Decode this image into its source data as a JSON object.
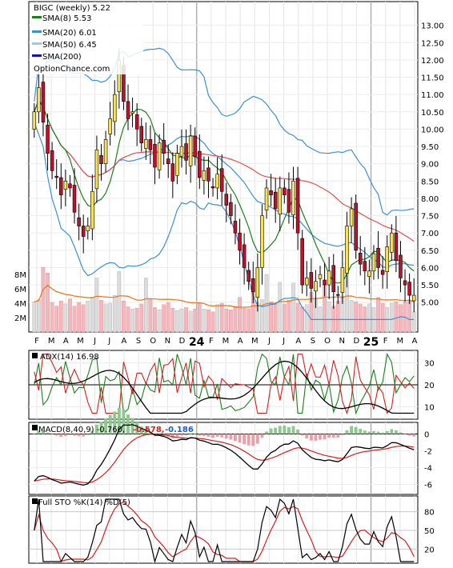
{
  "legend": {
    "title": "BIGC (weekly) 5.22",
    "sma8": "SMA(8) 5.53",
    "sma20": "SMA(20) 6.01",
    "sma50": "SMA(50) 6.45",
    "sma200": "SMA(200)",
    "watermark": "OptionChance.com",
    "adx": "ADX(14) 16.98",
    "macd": "MACD(8,40,9) -0.760,",
    "macd_value": "-0.578,",
    "macd_signal_value": "-0.186",
    "sto": "Full STO %K(14) %D(5)"
  },
  "colors": {
    "up_candle": "#f5e15a",
    "down_candle": "#c0102a",
    "sma8": "#1a7f1a",
    "sma20": "#3b8fd6",
    "sma50": "#e05050",
    "bb_upper": "#f0d020",
    "volume_up": "#dcdcdc",
    "volume_down": "#f2b8c0",
    "volume_ma": "#e87a20"
  },
  "chart_data": [
    {
      "type": "candlestick",
      "panel": "price",
      "x_tick_labels": [
        "F",
        "M",
        "A",
        "M",
        "J",
        "J",
        "A",
        "S",
        "O",
        "N",
        "D",
        "24",
        "F",
        "M",
        "A",
        "M",
        "J",
        "J",
        "A",
        "S",
        "O",
        "N",
        "D",
        "25",
        "F",
        "M",
        "A"
      ],
      "ylim": [
        4.3,
        13.5
      ],
      "y_tick_labels": [
        "13.00",
        "12.50",
        "12.00",
        "11.50",
        "11.00",
        "10.50",
        "10.00",
        "9.50",
        "9.00",
        "8.50",
        "8.00",
        "7.50",
        "7.00",
        "6.50",
        "6.00",
        "5.50",
        "5.00"
      ],
      "y_tick_values": [
        13,
        12.5,
        12,
        11.5,
        11,
        10.5,
        10,
        9.5,
        9,
        8.5,
        8,
        7.5,
        7,
        6.5,
        6,
        5.5,
        5
      ],
      "closes": [
        10.5,
        11.2,
        10.2,
        9.3,
        8.8,
        8.6,
        8.1,
        8.5,
        8.3,
        7.6,
        7.2,
        6.9,
        7.2,
        8.2,
        9.4,
        9.0,
        9.7,
        10.3,
        11.0,
        12.0,
        10.8,
        10.3,
        10.5,
        10.0,
        9.6,
        9.7,
        9.4,
        8.9,
        9.6,
        9.3,
        9.0,
        8.5,
        9.3,
        9.5,
        9.1,
        9.8,
        9.2,
        8.6,
        8.8,
        8.5,
        8.3,
        8.7,
        8.2,
        7.8,
        7.5,
        7.0,
        6.5,
        6.0,
        5.6,
        5.3,
        6.0,
        7.5,
        8.3,
        8.1,
        7.7,
        8.3,
        8.1,
        7.6,
        8.5,
        7.0,
        5.5,
        5.7,
        5.4,
        5.6,
        5.8,
        5.5,
        5.9,
        5.3,
        5.2,
        6.0,
        7.2,
        7.7,
        6.5,
        6.1,
        5.9,
        5.9,
        6.4,
        6.0,
        5.8,
        6.6,
        7.0,
        6.2,
        5.7,
        5.5,
        5.2,
        5.2
      ],
      "volume_ylim": [
        0,
        10000000
      ],
      "volume_tick_labels": [
        "8M",
        "6M",
        "4M",
        "2M"
      ],
      "volume_tick_values": [
        8000000,
        6000000,
        4000000,
        2000000
      ],
      "volumes": [
        4.2,
        4.5,
        9.0,
        8.2,
        4.1,
        3.6,
        4.3,
        3.9,
        4.6,
        3.6,
        4.1,
        3.8,
        4.3,
        4.7,
        7.5,
        4.4,
        3.9,
        4.0,
        5.1,
        8.4,
        4.3,
        3.5,
        3.2,
        3.3,
        3.9,
        7.5,
        4.5,
        3.4,
        3.1,
        3.8,
        4.1,
        3.3,
        3.0,
        3.2,
        3.4,
        2.9,
        3.2,
        4.0,
        3.2,
        3.1,
        2.8,
        3.8,
        4.0,
        3.2,
        3.1,
        3.6,
        4.8,
        3.3,
        3.2,
        7.2,
        4.1,
        4.5,
        8.0,
        4.2,
        4.0,
        6.9,
        3.9,
        4.4,
        6.8,
        4.0,
        3.5,
        3.8,
        5.5,
        4.7,
        3.5,
        6.7,
        4.2,
        3.6,
        4.3,
        5.0,
        8.5,
        4.4,
        4.2,
        3.9,
        3.5,
        3.9,
        3.4,
        4.8,
        4.0,
        3.4,
        4.0,
        4.2,
        3.8,
        4.2,
        4.4,
        2.8
      ]
    },
    {
      "type": "line",
      "panel": "ADX(14)",
      "ylim": [
        5,
        35
      ],
      "y_tick_labels": [
        "30",
        "20",
        "10"
      ],
      "y_tick_values": [
        30,
        20,
        10
      ],
      "current": 16.98
    },
    {
      "type": "line",
      "panel": "MACD(8,40,9)",
      "ylim": [
        -7,
        1
      ],
      "y_tick_labels": [
        "0",
        "-2",
        "-4",
        "-6"
      ],
      "y_tick_values": [
        0,
        -2,
        -4,
        -6
      ],
      "current": {
        "macd": -0.76,
        "signal": -0.578,
        "histogram": -0.186
      }
    },
    {
      "type": "line",
      "panel": "Full STO %K(14) %D(5)",
      "ylim": [
        0,
        100
      ],
      "y_tick_labels": [
        "80",
        "50",
        "20"
      ],
      "y_tick_values": [
        80,
        50,
        20
      ]
    }
  ]
}
